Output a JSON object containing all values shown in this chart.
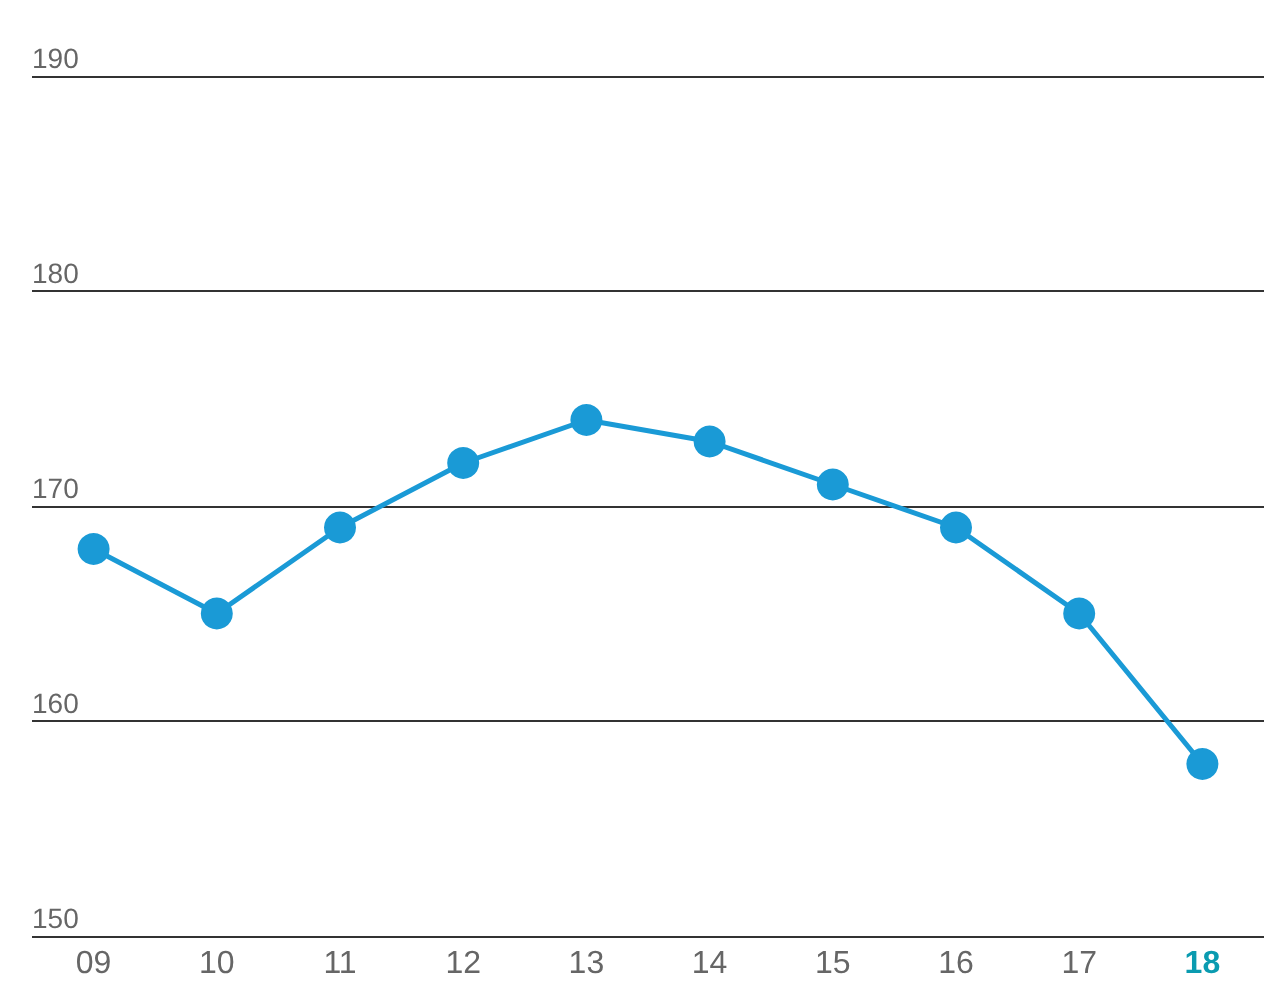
{
  "chart_data": {
    "type": "line",
    "categories": [
      "09",
      "10",
      "11",
      "12",
      "13",
      "14",
      "15",
      "16",
      "17",
      "18"
    ],
    "series": [
      {
        "color": "#1a9ad6",
        "values": [
          168,
          165,
          169,
          172,
          174,
          173,
          171,
          169,
          165,
          158
        ]
      }
    ],
    "ylim": [
      150,
      190
    ],
    "yticks": [
      150,
      160,
      170,
      180,
      190
    ],
    "grid": "y",
    "marker": "circle"
  }
}
